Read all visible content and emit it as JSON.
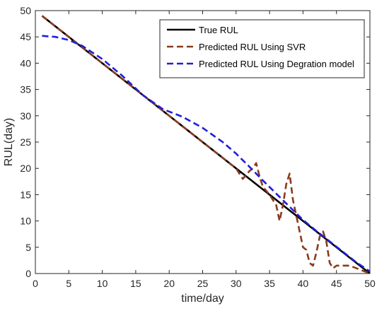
{
  "chart_data": {
    "type": "line",
    "title": "",
    "xlabel": "time/day",
    "ylabel": "RUL(day)",
    "xlim": [
      0,
      50
    ],
    "ylim": [
      0,
      50
    ],
    "xticks": [
      0,
      5,
      10,
      15,
      20,
      25,
      30,
      35,
      40,
      45,
      50
    ],
    "yticks": [
      0,
      5,
      10,
      15,
      20,
      25,
      30,
      35,
      40,
      45,
      50
    ],
    "grid": false,
    "legend_position": "top-right",
    "series": [
      {
        "name": "True RUL",
        "color": "#000000",
        "style": "solid",
        "x": [
          1,
          50
        ],
        "y": [
          49,
          0
        ]
      },
      {
        "name": "Predicted RUL Using SVR",
        "color": "#8B3A1E",
        "style": "dashed",
        "x": [
          1,
          5,
          10,
          15,
          20,
          25,
          30,
          31,
          32,
          32.5,
          33,
          33.5,
          34,
          35,
          36,
          36.5,
          37,
          37.5,
          38,
          38.5,
          39,
          40,
          40.5,
          41,
          41.5,
          42,
          42.5,
          43,
          43.5,
          44,
          44.5,
          45,
          46,
          47,
          48,
          49,
          50
        ],
        "y": [
          49,
          45,
          40,
          35,
          30,
          25,
          20,
          18,
          19.5,
          20,
          21,
          18.5,
          16.5,
          15,
          13,
          10,
          13,
          17,
          19,
          14,
          11,
          5,
          4.5,
          2,
          1.5,
          4,
          7,
          8,
          6,
          2,
          1,
          1.5,
          1.5,
          1.5,
          1,
          0.5,
          0
        ]
      },
      {
        "name": "Predicted RUL Using Degration model",
        "color": "#1F1FD9",
        "style": "dashed",
        "x": [
          1,
          3,
          5,
          7,
          10,
          13,
          16,
          19,
          22,
          25,
          28,
          30,
          32,
          34,
          36,
          38,
          40,
          42,
          44,
          46,
          48,
          50
        ],
        "y": [
          45.2,
          45.0,
          44.4,
          43.3,
          40.8,
          37.6,
          34.0,
          31.3,
          29.8,
          27.7,
          25.0,
          22.8,
          20.3,
          17.7,
          15.2,
          12.7,
          10.2,
          8.1,
          6.1,
          4.1,
          2.1,
          0.4
        ]
      }
    ]
  }
}
